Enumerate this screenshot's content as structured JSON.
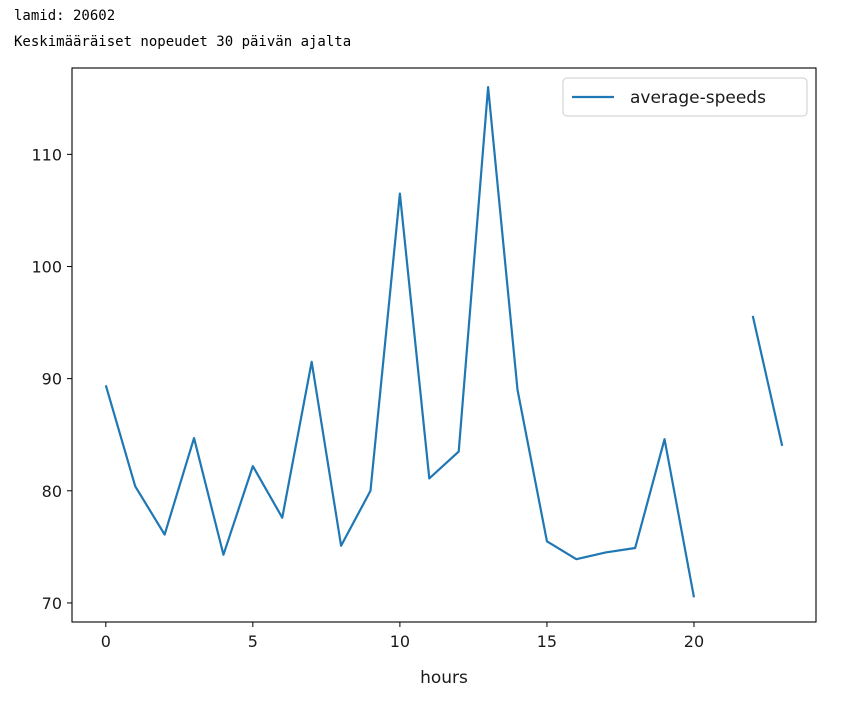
{
  "output": {
    "line1": "lamid: 20602",
    "line2": "Keskimääräiset nopeudet 30 päivän ajalta"
  },
  "chart_data": {
    "type": "line",
    "xlabel": "hours",
    "ylabel": "",
    "xlim": [
      -1.15,
      24.15
    ],
    "ylim": [
      68.3,
      117.7
    ],
    "xticks": [
      0,
      5,
      10,
      15,
      20
    ],
    "yticks": [
      70,
      80,
      90,
      100,
      110
    ],
    "grid": false,
    "legend_position": "upper right",
    "series": [
      {
        "name": "average-speeds",
        "color": "#1f77b4",
        "x": [
          0,
          1,
          2,
          3,
          4,
          5,
          6,
          7,
          8,
          9,
          10,
          11,
          12,
          13,
          14,
          15,
          16,
          17,
          18,
          19,
          20,
          21,
          22,
          23
        ],
        "y": [
          89.4,
          80.4,
          76.1,
          84.7,
          74.3,
          82.2,
          77.6,
          91.5,
          75.1,
          80.0,
          106.5,
          81.1,
          83.5,
          116.0,
          89.0,
          75.5,
          73.9,
          74.5,
          74.9,
          84.6,
          70.5,
          null,
          95.6,
          84.0
        ]
      }
    ]
  }
}
